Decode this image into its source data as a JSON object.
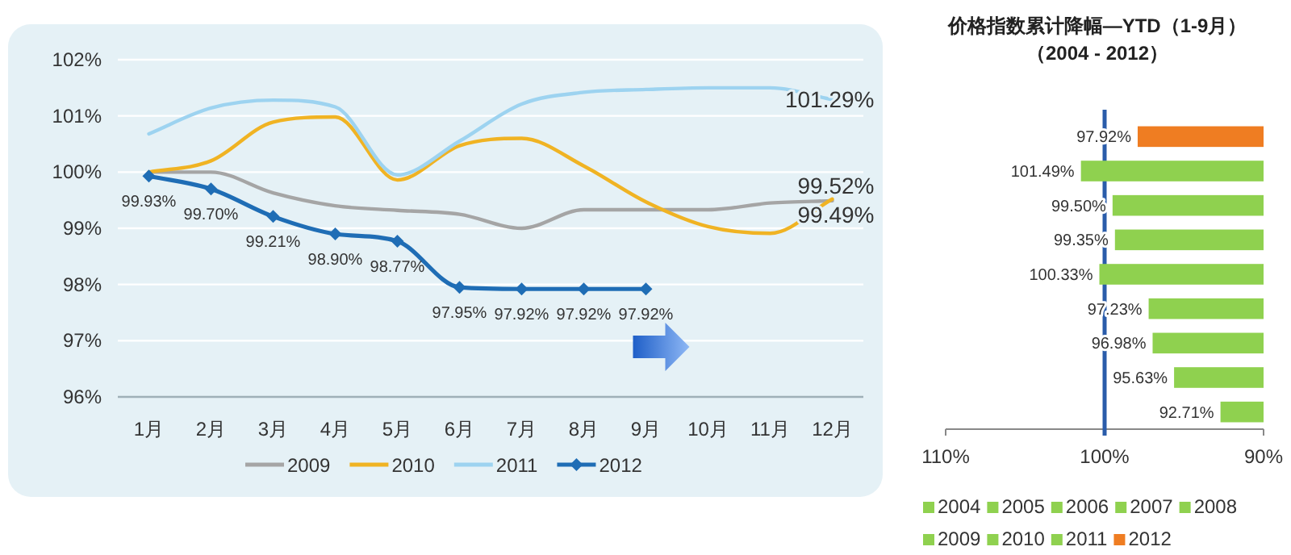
{
  "chart_data": [
    {
      "type": "line",
      "categories": [
        "1月",
        "2月",
        "3月",
        "4月",
        "5月",
        "6月",
        "7月",
        "8月",
        "9月",
        "10月",
        "11月",
        "12月"
      ],
      "ylim": [
        96,
        102
      ],
      "yticks": [
        {
          "value": 96,
          "label": "96%"
        },
        {
          "value": 97,
          "label": "97%"
        },
        {
          "value": 98,
          "label": "98%"
        },
        {
          "value": 99,
          "label": "99%"
        },
        {
          "value": 100,
          "label": "100%"
        },
        {
          "value": 101,
          "label": "101%"
        },
        {
          "value": 102,
          "label": "102%"
        }
      ],
      "grid": "y",
      "legend": "bottom",
      "series": [
        {
          "name": "2009",
          "color": "#a5a5a5",
          "marker": "none",
          "values": [
            100.0,
            100.0,
            99.63,
            99.4,
            99.32,
            99.25,
            99.0,
            99.33,
            99.33,
            99.33,
            99.45,
            99.49
          ]
        },
        {
          "name": "2010",
          "color": "#f0b323",
          "marker": "none",
          "values": [
            100.0,
            100.2,
            100.89,
            100.98,
            99.86,
            100.47,
            100.6,
            100.11,
            99.47,
            99.03,
            98.91,
            99.52
          ]
        },
        {
          "name": "2011",
          "color": "#9dd3f0",
          "marker": "none",
          "values": [
            100.68,
            101.14,
            101.28,
            101.16,
            99.95,
            100.55,
            101.21,
            101.42,
            101.47,
            101.5,
            101.5,
            101.29
          ]
        },
        {
          "name": "2012",
          "color": "#1f6db5",
          "marker": "diamond",
          "values": [
            99.93,
            99.7,
            99.21,
            98.9,
            98.77,
            97.95,
            97.92,
            97.92,
            97.92,
            null,
            null,
            null
          ],
          "value_labels": [
            "99.93%",
            "99.70%",
            "99.21%",
            "98.90%",
            "98.77%",
            "97.95%",
            "97.92%",
            "97.92%",
            "97.92%",
            null,
            null,
            null
          ]
        }
      ],
      "annotations": [
        {
          "text": "101.29%",
          "x": "12月",
          "y": 101.29
        },
        {
          "text": "99.49%",
          "x": "12月",
          "y": 99.49
        },
        {
          "text": "99.52%",
          "x": "12月",
          "y": 99.52
        }
      ]
    },
    {
      "type": "bar",
      "orientation": "horizontal",
      "title": "价格指数累计降幅—YTD（1-9月）",
      "subtitle": "（2004 - 2012）",
      "categories": [
        null,
        null,
        null,
        null,
        null,
        null,
        null,
        null,
        null
      ],
      "xlim": [
        110,
        90
      ],
      "xticks": [
        {
          "value": 110,
          "label": "110%"
        },
        {
          "value": 100,
          "label": "100%"
        },
        {
          "value": 90,
          "label": "90%"
        }
      ],
      "legend": "bottom",
      "ref_lines": [
        {
          "axis": "x",
          "value": 100,
          "color": "#2a5caa"
        }
      ],
      "series": [
        {
          "name": "2004",
          "color": "#8fd14f",
          "values": [
            null,
            null,
            null,
            null,
            null,
            null,
            null,
            null,
            92.71
          ],
          "value_labels": [
            null,
            null,
            null,
            null,
            null,
            null,
            null,
            null,
            "92.71%"
          ]
        },
        {
          "name": "2005",
          "color": "#8fd14f",
          "values": [
            null,
            null,
            null,
            null,
            null,
            null,
            null,
            95.63,
            null
          ],
          "value_labels": [
            null,
            null,
            null,
            null,
            null,
            null,
            null,
            "95.63%",
            null
          ]
        },
        {
          "name": "2006",
          "color": "#8fd14f",
          "values": [
            null,
            null,
            null,
            null,
            null,
            null,
            96.98,
            null,
            null
          ],
          "value_labels": [
            null,
            null,
            null,
            null,
            null,
            null,
            "96.98%",
            null,
            null
          ]
        },
        {
          "name": "2007",
          "color": "#8fd14f",
          "values": [
            null,
            null,
            null,
            null,
            null,
            97.23,
            null,
            null,
            null
          ],
          "value_labels": [
            null,
            null,
            null,
            null,
            null,
            "97.23%",
            null,
            null,
            null
          ]
        },
        {
          "name": "2008",
          "color": "#8fd14f",
          "values": [
            null,
            null,
            null,
            null,
            100.33,
            null,
            null,
            null,
            null
          ],
          "value_labels": [
            null,
            null,
            null,
            null,
            "100.33%",
            null,
            null,
            null,
            null
          ]
        },
        {
          "name": "2009",
          "color": "#8fd14f",
          "values": [
            null,
            null,
            null,
            99.35,
            null,
            null,
            null,
            null,
            null
          ],
          "value_labels": [
            null,
            null,
            null,
            "99.35%",
            null,
            null,
            null,
            null,
            null
          ]
        },
        {
          "name": "2010",
          "color": "#8fd14f",
          "values": [
            null,
            null,
            99.5,
            null,
            null,
            null,
            null,
            null,
            null
          ],
          "value_labels": [
            null,
            null,
            "99.50%",
            null,
            null,
            null,
            null,
            null,
            null
          ]
        },
        {
          "name": "2011",
          "color": "#8fd14f",
          "values": [
            null,
            101.49,
            null,
            null,
            null,
            null,
            null,
            null,
            null
          ],
          "value_labels": [
            null,
            "101.49%",
            null,
            null,
            null,
            null,
            null,
            null,
            null
          ]
        },
        {
          "name": "2012",
          "color": "#ef7d22",
          "values": [
            97.92,
            null,
            null,
            null,
            null,
            null,
            null,
            null,
            null
          ],
          "value_labels": [
            "97.92%",
            null,
            null,
            null,
            null,
            null,
            null,
            null,
            null
          ]
        }
      ]
    }
  ]
}
